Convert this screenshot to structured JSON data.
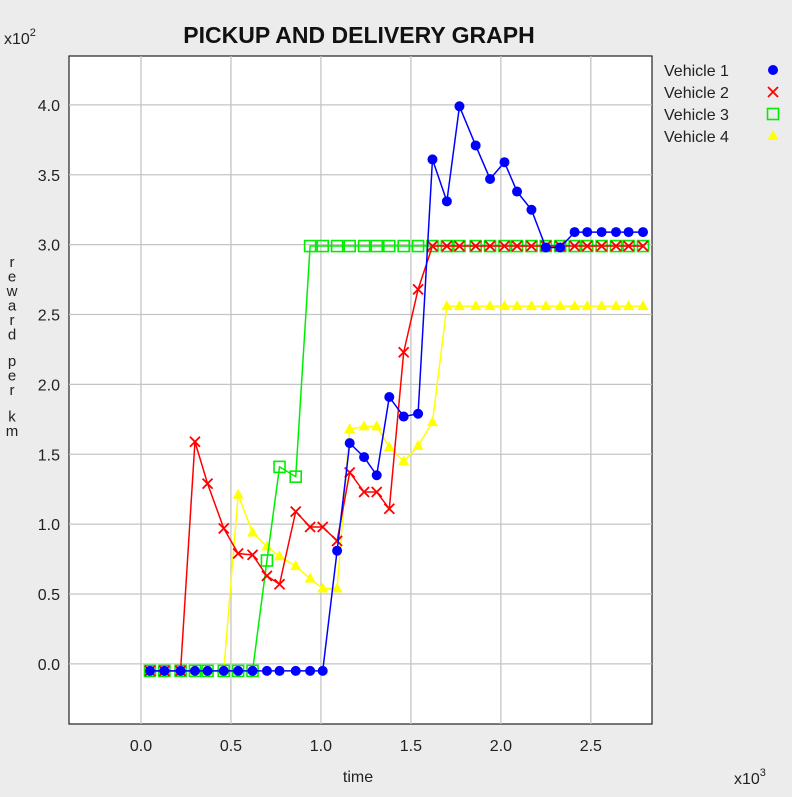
{
  "chart_data": {
    "type": "line",
    "title": "PICKUP AND DELIVERY GRAPH",
    "xlabel": "time",
    "ylabel": "reward per km",
    "x_scale_label": "x10",
    "x_scale_exp": "3",
    "y_scale_label": "x10",
    "y_scale_exp": "2",
    "x_units": "x10^3",
    "y_units": "x10^2",
    "xlim": [
      -0.4,
      2.84
    ],
    "ylim": [
      -0.43,
      4.35
    ],
    "x_ticks": [
      "0.0",
      "0.5",
      "1.0",
      "1.5",
      "2.0",
      "2.5"
    ],
    "y_ticks": [
      "0.0",
      "0.5",
      "1.0",
      "1.5",
      "2.0",
      "2.5",
      "3.0",
      "3.5",
      "4.0"
    ],
    "grid": true,
    "legend_position": "top-right, outside plot",
    "series": [
      {
        "name": "Vehicle 1",
        "color": "#0000ff",
        "marker": "circle",
        "points": [
          [
            0.05,
            -0.05
          ],
          [
            0.13,
            -0.05
          ],
          [
            0.22,
            -0.05
          ],
          [
            0.3,
            -0.05
          ],
          [
            0.37,
            -0.05
          ],
          [
            0.46,
            -0.05
          ],
          [
            0.54,
            -0.05
          ],
          [
            0.62,
            -0.05
          ],
          [
            0.7,
            -0.05
          ],
          [
            0.77,
            -0.05
          ],
          [
            0.86,
            -0.05
          ],
          [
            0.94,
            -0.05
          ],
          [
            1.01,
            -0.05
          ],
          [
            1.09,
            0.81
          ],
          [
            1.16,
            1.58
          ],
          [
            1.24,
            1.48
          ],
          [
            1.31,
            1.35
          ],
          [
            1.38,
            1.91
          ],
          [
            1.46,
            1.77
          ],
          [
            1.54,
            1.79
          ],
          [
            1.62,
            3.61
          ],
          [
            1.7,
            3.31
          ],
          [
            1.77,
            3.99
          ],
          [
            1.86,
            3.71
          ],
          [
            1.94,
            3.47
          ],
          [
            2.02,
            3.59
          ],
          [
            2.09,
            3.38
          ],
          [
            2.17,
            3.25
          ],
          [
            2.25,
            2.98
          ],
          [
            2.33,
            2.98
          ],
          [
            2.41,
            3.09
          ],
          [
            2.48,
            3.09
          ],
          [
            2.56,
            3.09
          ],
          [
            2.64,
            3.09
          ],
          [
            2.71,
            3.09
          ],
          [
            2.79,
            3.09
          ]
        ]
      },
      {
        "name": "Vehicle 2",
        "color": "#ff0000",
        "marker": "x",
        "points": [
          [
            0.05,
            -0.05
          ],
          [
            0.13,
            -0.05
          ],
          [
            0.22,
            -0.05
          ],
          [
            0.3,
            1.59
          ],
          [
            0.37,
            1.29
          ],
          [
            0.46,
            0.97
          ],
          [
            0.54,
            0.79
          ],
          [
            0.62,
            0.78
          ],
          [
            0.7,
            0.63
          ],
          [
            0.77,
            0.57
          ],
          [
            0.86,
            1.09
          ],
          [
            0.94,
            0.98
          ],
          [
            1.01,
            0.98
          ],
          [
            1.09,
            0.88
          ],
          [
            1.16,
            1.37
          ],
          [
            1.24,
            1.23
          ],
          [
            1.31,
            1.23
          ],
          [
            1.38,
            1.11
          ],
          [
            1.46,
            2.23
          ],
          [
            1.54,
            2.68
          ],
          [
            1.62,
            2.99
          ],
          [
            1.7,
            2.99
          ],
          [
            1.77,
            2.99
          ],
          [
            1.86,
            2.99
          ],
          [
            1.94,
            2.99
          ],
          [
            2.02,
            2.99
          ],
          [
            2.09,
            2.99
          ],
          [
            2.17,
            2.99
          ],
          [
            2.25,
            2.99
          ],
          [
            2.33,
            2.99
          ],
          [
            2.41,
            2.99
          ],
          [
            2.48,
            2.99
          ],
          [
            2.56,
            2.99
          ],
          [
            2.64,
            2.99
          ],
          [
            2.71,
            2.99
          ],
          [
            2.79,
            2.99
          ]
        ]
      },
      {
        "name": "Vehicle 3",
        "color": "#00ee00",
        "marker": "square",
        "points": [
          [
            0.05,
            -0.05
          ],
          [
            0.13,
            -0.05
          ],
          [
            0.22,
            -0.05
          ],
          [
            0.3,
            -0.05
          ],
          [
            0.37,
            -0.05
          ],
          [
            0.46,
            -0.05
          ],
          [
            0.54,
            -0.05
          ],
          [
            0.62,
            -0.05
          ],
          [
            0.7,
            0.74
          ],
          [
            0.77,
            1.41
          ],
          [
            0.86,
            1.34
          ],
          [
            0.94,
            2.99
          ],
          [
            1.01,
            2.99
          ],
          [
            1.09,
            2.99
          ],
          [
            1.16,
            2.99
          ],
          [
            1.24,
            2.99
          ],
          [
            1.31,
            2.99
          ],
          [
            1.38,
            2.99
          ],
          [
            1.46,
            2.99
          ],
          [
            1.54,
            2.99
          ],
          [
            1.62,
            2.99
          ],
          [
            1.7,
            2.99
          ],
          [
            1.77,
            2.99
          ],
          [
            1.86,
            2.99
          ],
          [
            1.94,
            2.99
          ],
          [
            2.02,
            2.99
          ],
          [
            2.09,
            2.99
          ],
          [
            2.17,
            2.99
          ],
          [
            2.25,
            2.99
          ],
          [
            2.33,
            2.99
          ],
          [
            2.41,
            2.99
          ],
          [
            2.48,
            2.99
          ],
          [
            2.56,
            2.99
          ],
          [
            2.64,
            2.99
          ],
          [
            2.71,
            2.99
          ],
          [
            2.79,
            2.99
          ]
        ]
      },
      {
        "name": "Vehicle 4",
        "color": "#ffff00",
        "marker": "triangle",
        "points": [
          [
            0.05,
            -0.05
          ],
          [
            0.13,
            -0.05
          ],
          [
            0.22,
            -0.05
          ],
          [
            0.3,
            -0.05
          ],
          [
            0.37,
            -0.05
          ],
          [
            0.46,
            -0.05
          ],
          [
            0.54,
            1.21
          ],
          [
            0.62,
            0.94
          ],
          [
            0.7,
            0.84
          ],
          [
            0.77,
            0.77
          ],
          [
            0.86,
            0.7
          ],
          [
            0.94,
            0.61
          ],
          [
            1.01,
            0.54
          ],
          [
            1.09,
            0.54
          ],
          [
            1.16,
            1.68
          ],
          [
            1.24,
            1.7
          ],
          [
            1.31,
            1.7
          ],
          [
            1.38,
            1.55
          ],
          [
            1.46,
            1.45
          ],
          [
            1.54,
            1.56
          ],
          [
            1.62,
            1.73
          ],
          [
            1.7,
            2.56
          ],
          [
            1.77,
            2.56
          ],
          [
            1.86,
            2.56
          ],
          [
            1.94,
            2.56
          ],
          [
            2.02,
            2.56
          ],
          [
            2.09,
            2.56
          ],
          [
            2.17,
            2.56
          ],
          [
            2.25,
            2.56
          ],
          [
            2.33,
            2.56
          ],
          [
            2.41,
            2.56
          ],
          [
            2.48,
            2.56
          ],
          [
            2.56,
            2.56
          ],
          [
            2.64,
            2.56
          ],
          [
            2.71,
            2.56
          ],
          [
            2.79,
            2.56
          ]
        ]
      }
    ]
  }
}
